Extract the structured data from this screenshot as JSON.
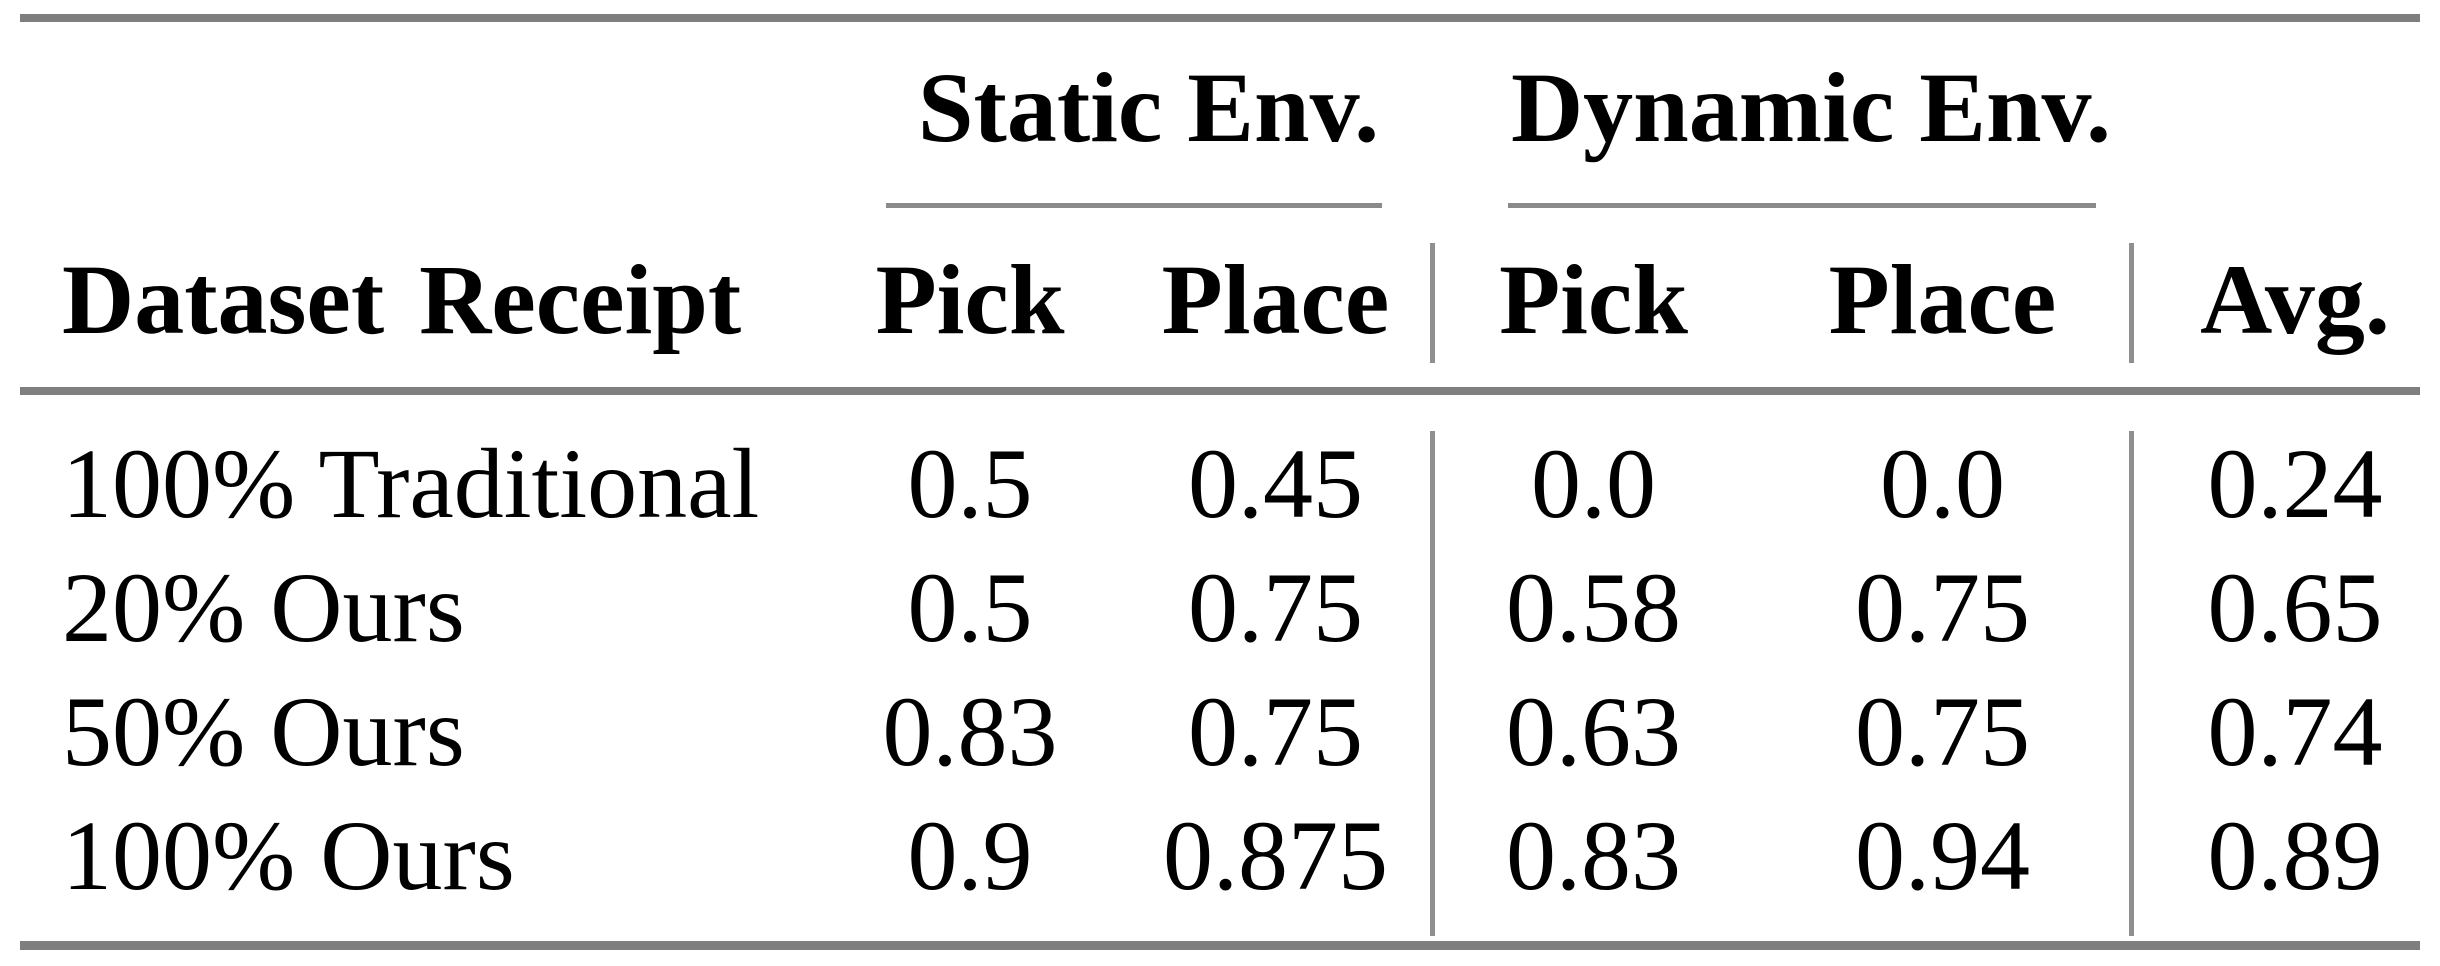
{
  "table": {
    "group_headers": {
      "static": "Static Env.",
      "dynamic": "Dynamic Env."
    },
    "headers": {
      "row_label": "Dataset Receipt",
      "static_pick": "Pick",
      "static_place": "Place",
      "dynamic_pick": "Pick",
      "dynamic_place": "Place",
      "avg": "Avg."
    },
    "rows": [
      {
        "label": "100% Traditional",
        "static_pick": "0.5",
        "static_place": "0.45",
        "dynamic_pick": "0.0",
        "dynamic_place": "0.0",
        "avg": "0.24"
      },
      {
        "label": "20% Ours",
        "static_pick": "0.5",
        "static_place": "0.75",
        "dynamic_pick": "0.58",
        "dynamic_place": "0.75",
        "avg": "0.65"
      },
      {
        "label": "50% Ours",
        "static_pick": "0.83",
        "static_place": "0.75",
        "dynamic_pick": "0.63",
        "dynamic_place": "0.75",
        "avg": "0.74"
      },
      {
        "label": "100% Ours",
        "static_pick": "0.9",
        "static_place": "0.875",
        "dynamic_pick": "0.83",
        "dynamic_place": "0.94",
        "avg": "0.89"
      }
    ],
    "colors": {
      "thick_rule": "#7f7f7f",
      "thin_rule": "#8f8f8f",
      "text": "#000000",
      "background": "#ffffff"
    }
  }
}
